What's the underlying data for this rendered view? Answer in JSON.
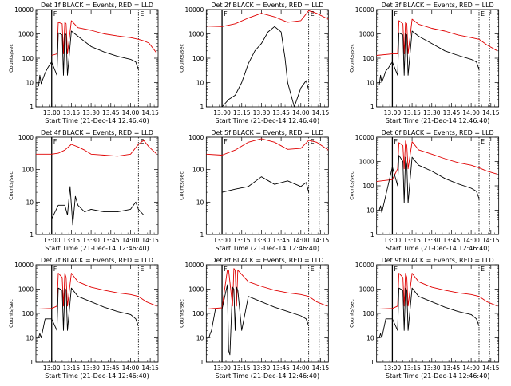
{
  "page": {
    "background": "#ffffff",
    "ink": "#000000"
  },
  "common": {
    "events_color": "#000000",
    "lld_color": "#e00000",
    "xlabel": "Start Time (21-Dec-14 12:46:40)",
    "ylabel": "Counts/sec",
    "x_ticks": [
      "13:00",
      "13:15",
      "13:30",
      "13:45",
      "14:00",
      "14:15"
    ],
    "x_ticks_min": [
      0,
      15,
      30,
      45,
      60,
      75
    ],
    "y_scale": "log",
    "marker_F": "F",
    "marker_E": "E"
  },
  "chart_data": [
    {
      "type": "line",
      "title": "Det 1f BLACK = Events, RED = LLD",
      "ylim": [
        1,
        10000
      ],
      "y_ticks": [
        "1",
        "10",
        "100",
        "1000",
        "10000"
      ],
      "x_min": [
        -12,
        81
      ],
      "vlines_min": [
        0,
        66,
        74
      ],
      "series": [
        {
          "color": "#e00000",
          "x": [
            0,
            4,
            5,
            8,
            9,
            10,
            11,
            12,
            15,
            20,
            30,
            40,
            50,
            60,
            66,
            70,
            74,
            80
          ],
          "y": [
            130,
            150,
            3000,
            2600,
            150,
            3000,
            2600,
            150,
            3500,
            1800,
            1400,
            1000,
            820,
            700,
            600,
            520,
            420,
            160
          ]
        },
        {
          "color": "#000000",
          "x": [
            -10,
            -9,
            -8,
            -5,
            -3,
            -1,
            0,
            4,
            5,
            8,
            9,
            10,
            11,
            12,
            15,
            20,
            30,
            40,
            50,
            60,
            64,
            66
          ],
          "y": [
            7,
            20,
            9,
            25,
            40,
            60,
            70,
            20,
            1100,
            900,
            20,
            1100,
            900,
            20,
            1300,
            800,
            300,
            180,
            120,
            90,
            70,
            35
          ]
        }
      ]
    },
    {
      "type": "line",
      "title": "Det 2f BLACK = Events, RED = LLD",
      "ylim": [
        1,
        10000
      ],
      "y_ticks": [
        "1",
        "10",
        "100",
        "1000",
        "10000"
      ],
      "x_min": [
        -12,
        81
      ],
      "vlines_min": [
        0,
        66,
        74
      ],
      "series": [
        {
          "color": "#e00000",
          "x": [
            -12,
            0,
            10,
            20,
            30,
            40,
            50,
            60,
            66,
            72,
            81
          ],
          "y": [
            2100,
            2000,
            2600,
            4500,
            7000,
            5000,
            3000,
            3500,
            9000,
            7000,
            4000
          ]
        },
        {
          "color": "#000000",
          "x": [
            0,
            5,
            10,
            15,
            20,
            25,
            30,
            35,
            40,
            45,
            48,
            50,
            55,
            60,
            64,
            66
          ],
          "y": [
            1,
            2,
            3,
            10,
            60,
            200,
            400,
            1200,
            2000,
            1200,
            100,
            10,
            1,
            6,
            12,
            5
          ]
        }
      ]
    },
    {
      "type": "line",
      "title": "Det 3f BLACK = Events, RED = LLD",
      "ylim": [
        1,
        10000
      ],
      "y_ticks": [
        "1",
        "10",
        "100",
        "1000",
        "10000"
      ],
      "x_min": [
        -12,
        81
      ],
      "vlines_min": [
        0,
        66,
        74
      ],
      "series": [
        {
          "color": "#e00000",
          "x": [
            -12,
            0,
            4,
            5,
            8,
            9,
            10,
            11,
            12,
            15,
            20,
            30,
            40,
            50,
            60,
            66,
            72,
            80
          ],
          "y": [
            130,
            150,
            150,
            3500,
            2600,
            150,
            3000,
            2600,
            150,
            4000,
            2500,
            1700,
            1300,
            900,
            700,
            600,
            350,
            200
          ]
        },
        {
          "color": "#000000",
          "x": [
            -10,
            -9,
            -8,
            -5,
            -3,
            -1,
            0,
            4,
            5,
            8,
            9,
            10,
            11,
            12,
            15,
            20,
            30,
            40,
            50,
            60,
            64,
            66
          ],
          "y": [
            8,
            20,
            10,
            30,
            40,
            60,
            70,
            20,
            1100,
            900,
            20,
            1000,
            900,
            20,
            1300,
            800,
            400,
            200,
            130,
            90,
            70,
            35
          ]
        }
      ]
    },
    {
      "type": "line",
      "title": "Det 4f BLACK = Events, RED = LLD",
      "ylim": [
        1,
        1000
      ],
      "y_ticks": [
        "1",
        "10",
        "100",
        "1000"
      ],
      "x_min": [
        -12,
        81
      ],
      "vlines_min": [
        0,
        66,
        74
      ],
      "series": [
        {
          "color": "#e00000",
          "x": [
            -12,
            0,
            5,
            10,
            15,
            20,
            25,
            30,
            40,
            50,
            60,
            66,
            70,
            74,
            80
          ],
          "y": [
            300,
            300,
            320,
            400,
            600,
            500,
            400,
            300,
            280,
            260,
            300,
            600,
            800,
            500,
            300
          ]
        },
        {
          "color": "#000000",
          "x": [
            0,
            5,
            10,
            12,
            14,
            16,
            18,
            20,
            25,
            30,
            40,
            50,
            60,
            64,
            66,
            70
          ],
          "y": [
            3,
            8,
            8,
            4,
            30,
            2,
            15,
            8,
            5,
            6,
            5,
            5,
            6,
            10,
            6,
            4
          ]
        }
      ]
    },
    {
      "type": "line",
      "title": "Det 5f BLACK = Events, RED = LLD",
      "ylim": [
        1,
        1000
      ],
      "y_ticks": [
        "1",
        "10",
        "100",
        "1000"
      ],
      "x_min": [
        -12,
        81
      ],
      "vlines_min": [
        0,
        66,
        74
      ],
      "series": [
        {
          "color": "#e00000",
          "x": [
            -12,
            0,
            10,
            20,
            30,
            40,
            50,
            60,
            66,
            72,
            81
          ],
          "y": [
            300,
            280,
            400,
            700,
            900,
            700,
            420,
            450,
            800,
            700,
            400
          ]
        },
        {
          "color": "#000000",
          "x": [
            0,
            10,
            20,
            30,
            40,
            50,
            60,
            64,
            66
          ],
          "y": [
            20,
            25,
            30,
            60,
            35,
            45,
            30,
            40,
            20
          ]
        }
      ]
    },
    {
      "type": "line",
      "title": "Det 6f BLACK = Events, RED = LLD",
      "ylim": [
        1,
        10000
      ],
      "y_ticks": [
        "1",
        "10",
        "100",
        "1000",
        "10000"
      ],
      "x_min": [
        -12,
        81
      ],
      "vlines_min": [
        0,
        66,
        74
      ],
      "series": [
        {
          "color": "#e00000",
          "x": [
            -12,
            0,
            4,
            5,
            8,
            9,
            10,
            11,
            12,
            15,
            20,
            30,
            40,
            50,
            60,
            66,
            72,
            80
          ],
          "y": [
            150,
            180,
            500,
            6000,
            4500,
            500,
            7000,
            4500,
            500,
            6500,
            3000,
            2000,
            1300,
            900,
            700,
            550,
            400,
            300
          ]
        },
        {
          "color": "#000000",
          "x": [
            -10,
            -9,
            -8,
            0,
            4,
            5,
            8,
            9,
            10,
            11,
            12,
            15,
            20,
            30,
            40,
            50,
            60,
            64,
            66
          ],
          "y": [
            10,
            15,
            8,
            600,
            100,
            1800,
            1000,
            20,
            1500,
            700,
            20,
            1500,
            700,
            400,
            200,
            120,
            80,
            60,
            30
          ]
        }
      ]
    },
    {
      "type": "line",
      "title": "Det 7f BLACK = Events, RED = LLD",
      "ylim": [
        1,
        10000
      ],
      "y_ticks": [
        "1",
        "10",
        "100",
        "1000",
        "10000"
      ],
      "x_min": [
        -12,
        81
      ],
      "vlines_min": [
        0,
        66,
        74
      ],
      "series": [
        {
          "color": "#e00000",
          "x": [
            -12,
            0,
            4,
            5,
            8,
            9,
            10,
            11,
            12,
            15,
            20,
            30,
            40,
            50,
            60,
            66,
            72,
            80
          ],
          "y": [
            150,
            160,
            200,
            4500,
            3000,
            200,
            4500,
            3000,
            200,
            4500,
            2000,
            1200,
            900,
            700,
            600,
            500,
            300,
            200
          ]
        },
        {
          "color": "#000000",
          "x": [
            -10,
            -9,
            -8,
            -5,
            -1,
            0,
            4,
            5,
            8,
            9,
            10,
            11,
            12,
            15,
            20,
            30,
            40,
            50,
            60,
            64,
            66
          ],
          "y": [
            10,
            15,
            10,
            60,
            60,
            60,
            20,
            1100,
            900,
            20,
            1100,
            900,
            20,
            1100,
            500,
            300,
            180,
            120,
            90,
            60,
            30
          ]
        }
      ]
    },
    {
      "type": "line",
      "title": "Det 8f BLACK = Events, RED = LLD",
      "ylim": [
        1,
        10000
      ],
      "y_ticks": [
        "1",
        "10",
        "100",
        "1000",
        "10000"
      ],
      "x_min": [
        -12,
        81
      ],
      "vlines_min": [
        0,
        66,
        74
      ],
      "series": [
        {
          "color": "#e00000",
          "x": [
            -12,
            0,
            4,
            5,
            8,
            9,
            10,
            11,
            12,
            15,
            20,
            30,
            40,
            50,
            60,
            66,
            72,
            80
          ],
          "y": [
            150,
            170,
            6000,
            6000,
            200,
            7000,
            6000,
            200,
            6000,
            4000,
            2000,
            1300,
            900,
            700,
            600,
            500,
            300,
            200
          ]
        },
        {
          "color": "#000000",
          "x": [
            -10,
            -9,
            -8,
            -5,
            0,
            4,
            5,
            6,
            8,
            9,
            10,
            11,
            12,
            15,
            20,
            30,
            40,
            50,
            60,
            64,
            66
          ],
          "y": [
            10,
            15,
            20,
            150,
            150,
            1500,
            3,
            2,
            1200,
            1000,
            20,
            1200,
            900,
            20,
            500,
            300,
            180,
            120,
            80,
            60,
            30
          ]
        }
      ]
    },
    {
      "type": "line",
      "title": "Det 9f BLACK = Events, RED = LLD",
      "ylim": [
        1,
        10000
      ],
      "y_ticks": [
        "1",
        "10",
        "100",
        "1000",
        "10000"
      ],
      "x_min": [
        -12,
        81
      ],
      "vlines_min": [
        0,
        66,
        74
      ],
      "series": [
        {
          "color": "#e00000",
          "x": [
            -12,
            0,
            4,
            5,
            8,
            9,
            10,
            11,
            12,
            15,
            20,
            30,
            40,
            50,
            60,
            66,
            72,
            80
          ],
          "y": [
            150,
            160,
            200,
            4500,
            3000,
            200,
            4500,
            3000,
            200,
            4500,
            2000,
            1200,
            900,
            700,
            600,
            500,
            300,
            200
          ]
        },
        {
          "color": "#000000",
          "x": [
            -10,
            -9,
            -8,
            -5,
            -1,
            0,
            4,
            5,
            8,
            9,
            10,
            11,
            12,
            15,
            20,
            30,
            40,
            50,
            60,
            64,
            66
          ],
          "y": [
            10,
            15,
            10,
            60,
            60,
            60,
            20,
            1100,
            900,
            20,
            1100,
            900,
            20,
            1100,
            500,
            300,
            180,
            120,
            90,
            60,
            30
          ]
        }
      ]
    }
  ]
}
